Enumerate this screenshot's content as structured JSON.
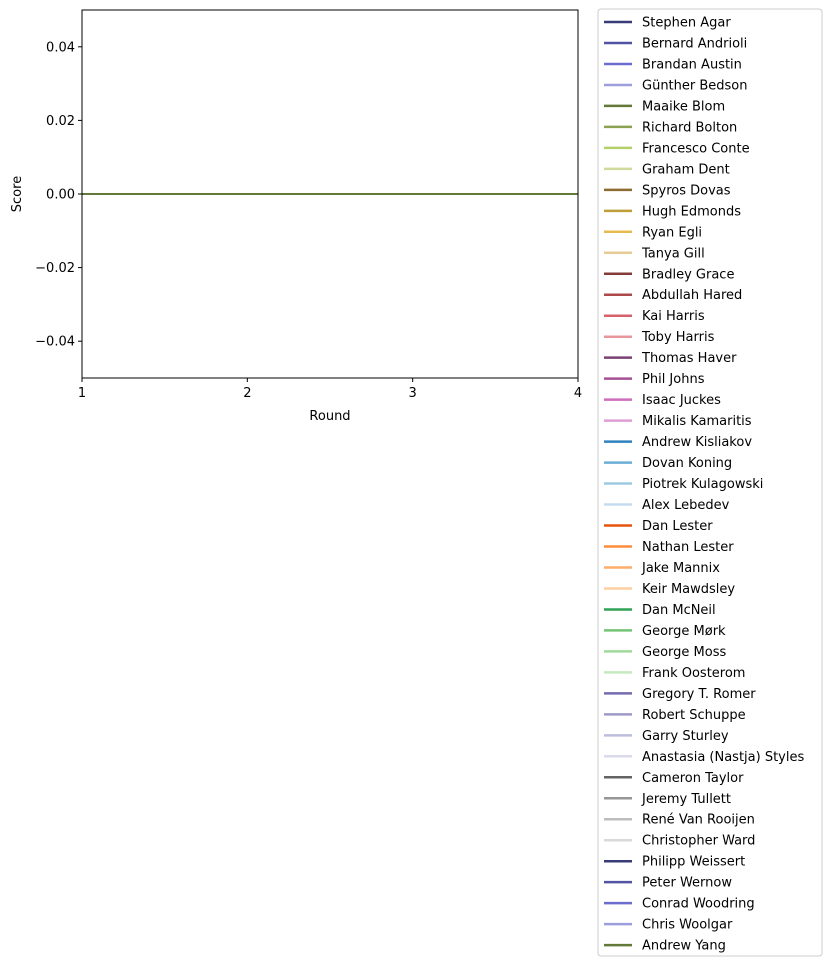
{
  "chart_data": {
    "type": "line",
    "title": "",
    "xlabel": "Round",
    "ylabel": "Score",
    "xlim": [
      1,
      4
    ],
    "ylim": [
      -0.05,
      0.05
    ],
    "x": [
      1,
      2,
      3,
      4
    ],
    "x_ticks": [
      "1",
      "2",
      "3",
      "4"
    ],
    "y_ticks": [
      {
        "value": 0.04,
        "label": "0.04"
      },
      {
        "value": 0.02,
        "label": "0.02"
      },
      {
        "value": 0.0,
        "label": "0.00"
      },
      {
        "value": -0.02,
        "label": "−0.02"
      },
      {
        "value": -0.04,
        "label": "−0.04"
      }
    ],
    "grid": false,
    "legend_position": "outside-right",
    "series": [
      {
        "name": "Stephen Agar",
        "color": "#393b79",
        "values": [
          0,
          0,
          0,
          0
        ]
      },
      {
        "name": "Bernard Andrioli",
        "color": "#5254a3",
        "values": [
          0,
          0,
          0,
          0
        ]
      },
      {
        "name": "Brandan Austin",
        "color": "#6b6ecf",
        "values": [
          0,
          0,
          0,
          0
        ]
      },
      {
        "name": "Günther Bedson",
        "color": "#9c9ede",
        "values": [
          0,
          0,
          0,
          0
        ]
      },
      {
        "name": "Maaike Blom",
        "color": "#637939",
        "values": [
          0,
          0,
          0,
          0
        ]
      },
      {
        "name": "Richard Bolton",
        "color": "#8ca252",
        "values": [
          0,
          0,
          0,
          0
        ]
      },
      {
        "name": "Francesco Conte",
        "color": "#b5cf6b",
        "values": [
          0,
          0,
          0,
          0
        ]
      },
      {
        "name": "Graham Dent",
        "color": "#cedb9c",
        "values": [
          0,
          0,
          0,
          0
        ]
      },
      {
        "name": "Spyros Dovas",
        "color": "#8c6d31",
        "values": [
          0,
          0,
          0,
          0
        ]
      },
      {
        "name": "Hugh Edmonds",
        "color": "#bd9e39",
        "values": [
          0,
          0,
          0,
          0
        ]
      },
      {
        "name": "Ryan Egli",
        "color": "#e7ba52",
        "values": [
          0,
          0,
          0,
          0
        ]
      },
      {
        "name": "Tanya Gill",
        "color": "#e7cb94",
        "values": [
          0,
          0,
          0,
          0
        ]
      },
      {
        "name": "Bradley Grace",
        "color": "#843c39",
        "values": [
          0,
          0,
          0,
          0
        ]
      },
      {
        "name": "Abdullah Hared",
        "color": "#ad494a",
        "values": [
          0,
          0,
          0,
          0
        ]
      },
      {
        "name": "Kai Harris",
        "color": "#d6616b",
        "values": [
          0,
          0,
          0,
          0
        ]
      },
      {
        "name": "Toby Harris",
        "color": "#e7969c",
        "values": [
          0,
          0,
          0,
          0
        ]
      },
      {
        "name": "Thomas Haver",
        "color": "#7b4173",
        "values": [
          0,
          0,
          0,
          0
        ]
      },
      {
        "name": "Phil Johns",
        "color": "#a55194",
        "values": [
          0,
          0,
          0,
          0
        ]
      },
      {
        "name": "Isaac Juckes",
        "color": "#ce6dbd",
        "values": [
          0,
          0,
          0,
          0
        ]
      },
      {
        "name": "Mikalis Kamaritis",
        "color": "#de9ed6",
        "values": [
          0,
          0,
          0,
          0
        ]
      },
      {
        "name": "Andrew Kisliakov",
        "color": "#3182bd",
        "values": [
          0,
          0,
          0,
          0
        ]
      },
      {
        "name": "Dovan Koning",
        "color": "#6baed6",
        "values": [
          0,
          0,
          0,
          0
        ]
      },
      {
        "name": "Piotrek Kulagowski",
        "color": "#9ecae1",
        "values": [
          0,
          0,
          0,
          0
        ]
      },
      {
        "name": "Alex Lebedev",
        "color": "#c6dbef",
        "values": [
          0,
          0,
          0,
          0
        ]
      },
      {
        "name": "Dan Lester",
        "color": "#e6550d",
        "values": [
          0,
          0,
          0,
          0
        ]
      },
      {
        "name": "Nathan Lester",
        "color": "#fd8d3c",
        "values": [
          0,
          0,
          0,
          0
        ]
      },
      {
        "name": "Jake Mannix",
        "color": "#fdae6b",
        "values": [
          0,
          0,
          0,
          0
        ]
      },
      {
        "name": "Keir Mawdsley",
        "color": "#fdd0a2",
        "values": [
          0,
          0,
          0,
          0
        ]
      },
      {
        "name": "Dan McNeil",
        "color": "#31a354",
        "values": [
          0,
          0,
          0,
          0
        ]
      },
      {
        "name": "George Mørk",
        "color": "#74c476",
        "values": [
          0,
          0,
          0,
          0
        ]
      },
      {
        "name": "George Moss",
        "color": "#a1d99b",
        "values": [
          0,
          0,
          0,
          0
        ]
      },
      {
        "name": "Frank Oosterom",
        "color": "#c7e9c0",
        "values": [
          0,
          0,
          0,
          0
        ]
      },
      {
        "name": "Gregory T. Romer",
        "color": "#756bb1",
        "values": [
          0,
          0,
          0,
          0
        ]
      },
      {
        "name": "Robert Schuppe",
        "color": "#9e9ac8",
        "values": [
          0,
          0,
          0,
          0
        ]
      },
      {
        "name": "Garry Sturley",
        "color": "#bcbddc",
        "values": [
          0,
          0,
          0,
          0
        ]
      },
      {
        "name": "Anastasia (Nastja) Styles",
        "color": "#dadaeb",
        "values": [
          0,
          0,
          0,
          0
        ]
      },
      {
        "name": "Cameron Taylor",
        "color": "#636363",
        "values": [
          0,
          0,
          0,
          0
        ]
      },
      {
        "name": "Jeremy Tullett",
        "color": "#969696",
        "values": [
          0,
          0,
          0,
          0
        ]
      },
      {
        "name": "René Van Rooijen",
        "color": "#bdbdbd",
        "values": [
          0,
          0,
          0,
          0
        ]
      },
      {
        "name": "Christopher Ward",
        "color": "#d9d9d9",
        "values": [
          0,
          0,
          0,
          0
        ]
      },
      {
        "name": "Philipp Weissert",
        "color": "#393b79",
        "values": [
          0,
          0,
          0,
          0
        ]
      },
      {
        "name": "Peter Wernow",
        "color": "#5254a3",
        "values": [
          0,
          0,
          0,
          0
        ]
      },
      {
        "name": "Conrad Woodring",
        "color": "#6b6ecf",
        "values": [
          0,
          0,
          0,
          0
        ]
      },
      {
        "name": "Chris Woolgar",
        "color": "#9c9ede",
        "values": [
          0,
          0,
          0,
          0
        ]
      },
      {
        "name": "Andrew Yang",
        "color": "#637939",
        "values": [
          0,
          0,
          0,
          0
        ]
      }
    ]
  }
}
